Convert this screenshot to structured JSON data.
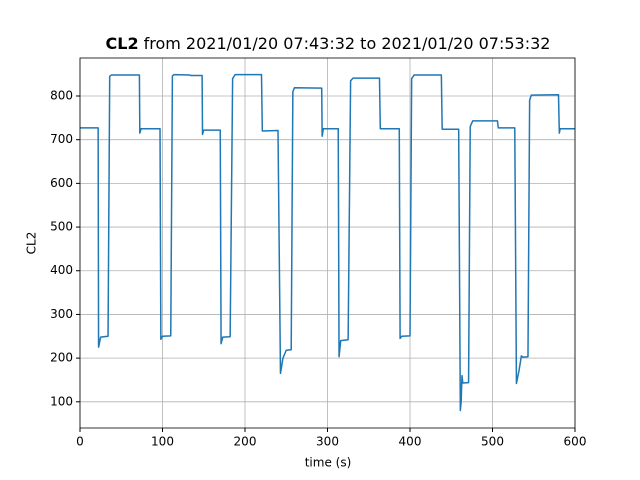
{
  "chart_data": {
    "type": "line",
    "title_bold": "CL2",
    "title": "from 2021/01/20 07:43:32 to 2021/01/20 07:53:32",
    "x_label": "time (s)",
    "y_label": "CL2",
    "x": [
      0,
      22,
      22.5,
      25,
      34,
      36,
      38,
      72,
      72.5,
      74,
      97,
      98,
      100,
      110,
      112,
      114,
      133,
      134,
      148,
      148.5,
      150,
      170,
      171,
      173,
      182,
      185,
      188,
      220,
      221,
      240,
      243,
      246,
      250,
      256,
      258,
      260,
      293,
      293.5,
      295,
      313,
      314,
      316,
      325,
      328,
      331,
      363,
      364,
      387,
      388,
      390,
      400,
      402,
      405,
      438,
      439,
      459,
      461,
      462,
      463,
      464,
      471,
      473,
      476,
      506,
      507,
      527,
      529,
      532,
      535,
      537,
      543,
      545,
      547,
      580,
      581,
      582,
      600
    ],
    "series": [
      {
        "name": "CL2",
        "color": "#1f77b4",
        "values": [
          727,
          727,
          225,
          248,
          250,
          845,
          848,
          848,
          715,
          725,
          725,
          243,
          250,
          251,
          846,
          849,
          848,
          847,
          847,
          712,
          722,
          722,
          233,
          248,
          249,
          840,
          849,
          849,
          720,
          721,
          165,
          200,
          218,
          219,
          810,
          819,
          818,
          708,
          725,
          725,
          203,
          240,
          242,
          835,
          841,
          841,
          725,
          725,
          245,
          250,
          251,
          840,
          848,
          848,
          724,
          724,
          80,
          100,
          160,
          143,
          144,
          730,
          743,
          743,
          727,
          727,
          142,
          170,
          205,
          202,
          203,
          790,
          802,
          803,
          715,
          725,
          725
        ]
      }
    ],
    "xlim": [
      0,
      600
    ],
    "ylim": [
      40,
      887
    ],
    "xticks": [
      0,
      100,
      200,
      300,
      400,
      500,
      600
    ],
    "yticks": [
      100,
      200,
      300,
      400,
      500,
      600,
      700,
      800
    ],
    "grid": true
  }
}
